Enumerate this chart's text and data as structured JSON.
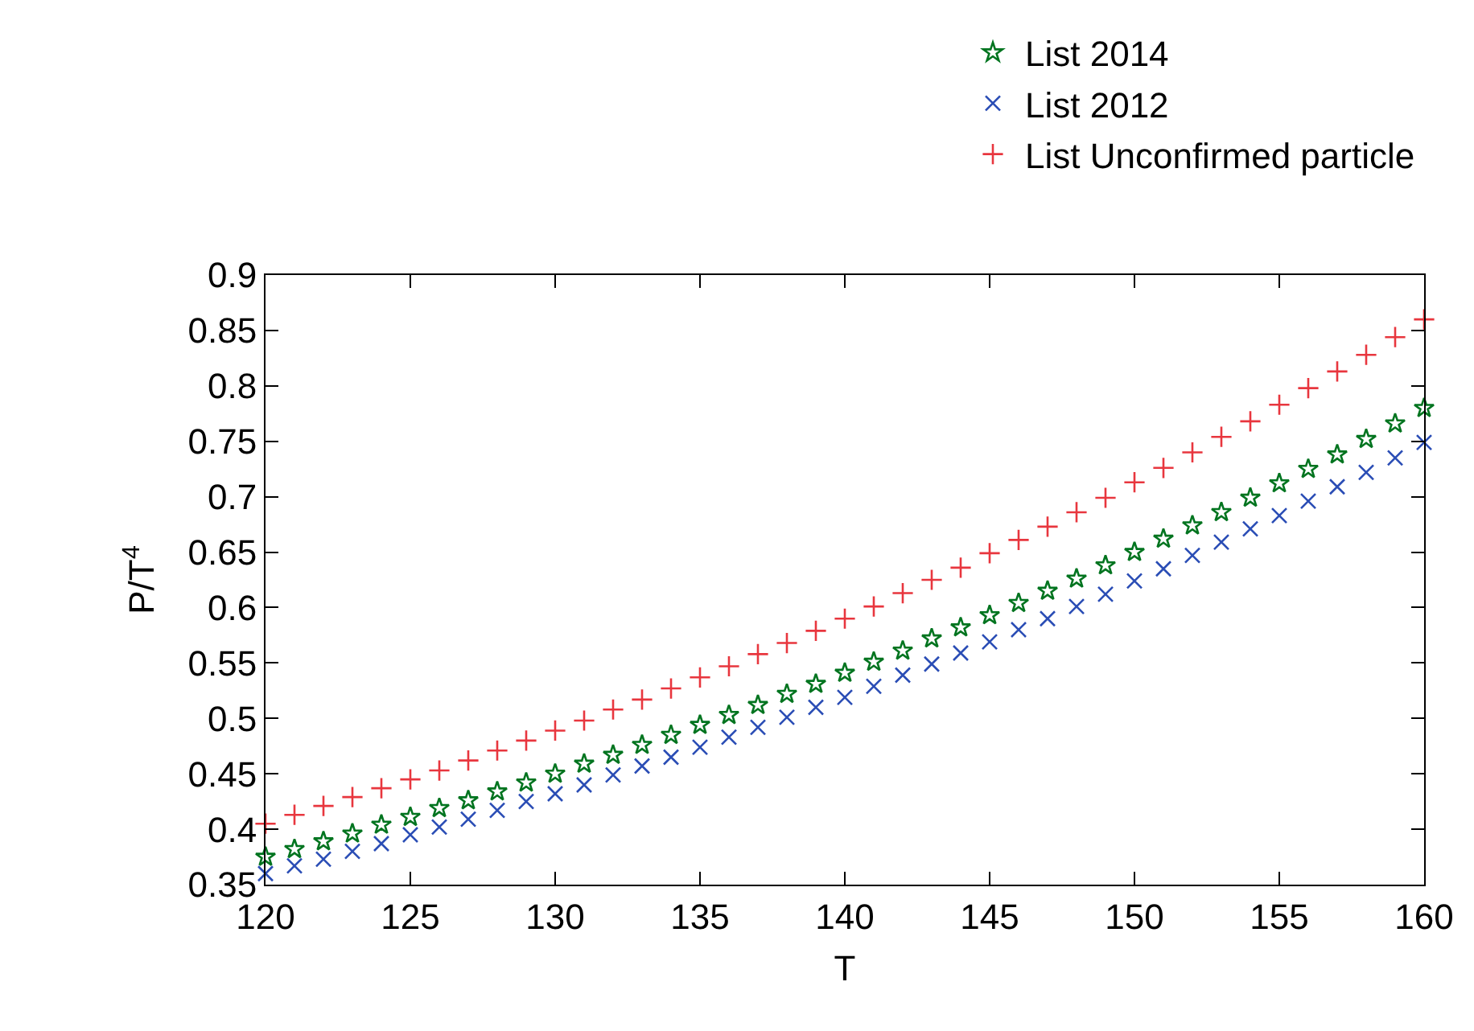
{
  "chart_data": {
    "type": "scatter",
    "xlabel": "T",
    "ylabel": "P/T$^{4}$",
    "x": [
      120,
      121,
      122,
      123,
      124,
      125,
      126,
      127,
      128,
      129,
      130,
      131,
      132,
      133,
      134,
      135,
      136,
      137,
      138,
      139,
      140,
      141,
      142,
      143,
      144,
      145,
      146,
      147,
      148,
      149,
      150,
      151,
      152,
      153,
      154,
      155,
      156,
      157,
      158,
      159,
      160
    ],
    "series": [
      {
        "name": "List 2014",
        "color": "#00741f",
        "marker": "star",
        "values": [
          0.375,
          0.382,
          0.389,
          0.396,
          0.404,
          0.411,
          0.419,
          0.426,
          0.434,
          0.442,
          0.45,
          0.459,
          0.467,
          0.476,
          0.485,
          0.494,
          0.503,
          0.512,
          0.522,
          0.531,
          0.541,
          0.551,
          0.561,
          0.572,
          0.582,
          0.593,
          0.604,
          0.615,
          0.626,
          0.638,
          0.65,
          0.662,
          0.674,
          0.686,
          0.699,
          0.712,
          0.725,
          0.738,
          0.752,
          0.766,
          0.78
        ]
      },
      {
        "name": "List 2012",
        "color": "#2a4db5",
        "marker": "x",
        "values": [
          0.36,
          0.367,
          0.373,
          0.38,
          0.387,
          0.395,
          0.402,
          0.409,
          0.417,
          0.425,
          0.432,
          0.44,
          0.449,
          0.457,
          0.465,
          0.474,
          0.483,
          0.492,
          0.501,
          0.51,
          0.519,
          0.529,
          0.539,
          0.549,
          0.559,
          0.569,
          0.58,
          0.59,
          0.601,
          0.612,
          0.624,
          0.635,
          0.647,
          0.659,
          0.671,
          0.683,
          0.696,
          0.709,
          0.722,
          0.735,
          0.749
        ]
      },
      {
        "name": "List Unconfirmed particle",
        "color": "#e8363e",
        "marker": "cross",
        "values": [
          0.405,
          0.413,
          0.421,
          0.429,
          0.437,
          0.445,
          0.453,
          0.462,
          0.471,
          0.48,
          0.489,
          0.498,
          0.508,
          0.517,
          0.527,
          0.537,
          0.547,
          0.558,
          0.568,
          0.579,
          0.59,
          0.601,
          0.613,
          0.625,
          0.636,
          0.649,
          0.661,
          0.673,
          0.686,
          0.699,
          0.713,
          0.726,
          0.74,
          0.754,
          0.768,
          0.783,
          0.798,
          0.813,
          0.828,
          0.844,
          0.86
        ]
      }
    ],
    "xlim": [
      120,
      160
    ],
    "xticks": [
      120,
      125,
      130,
      135,
      140,
      145,
      150,
      155,
      160
    ],
    "ylim": [
      0.35,
      0.9
    ],
    "yticks": [
      0.35,
      0.4,
      0.45,
      0.5,
      0.55,
      0.6,
      0.65,
      0.7,
      0.75,
      0.8,
      0.85,
      0.9
    ],
    "legend": "top right"
  }
}
